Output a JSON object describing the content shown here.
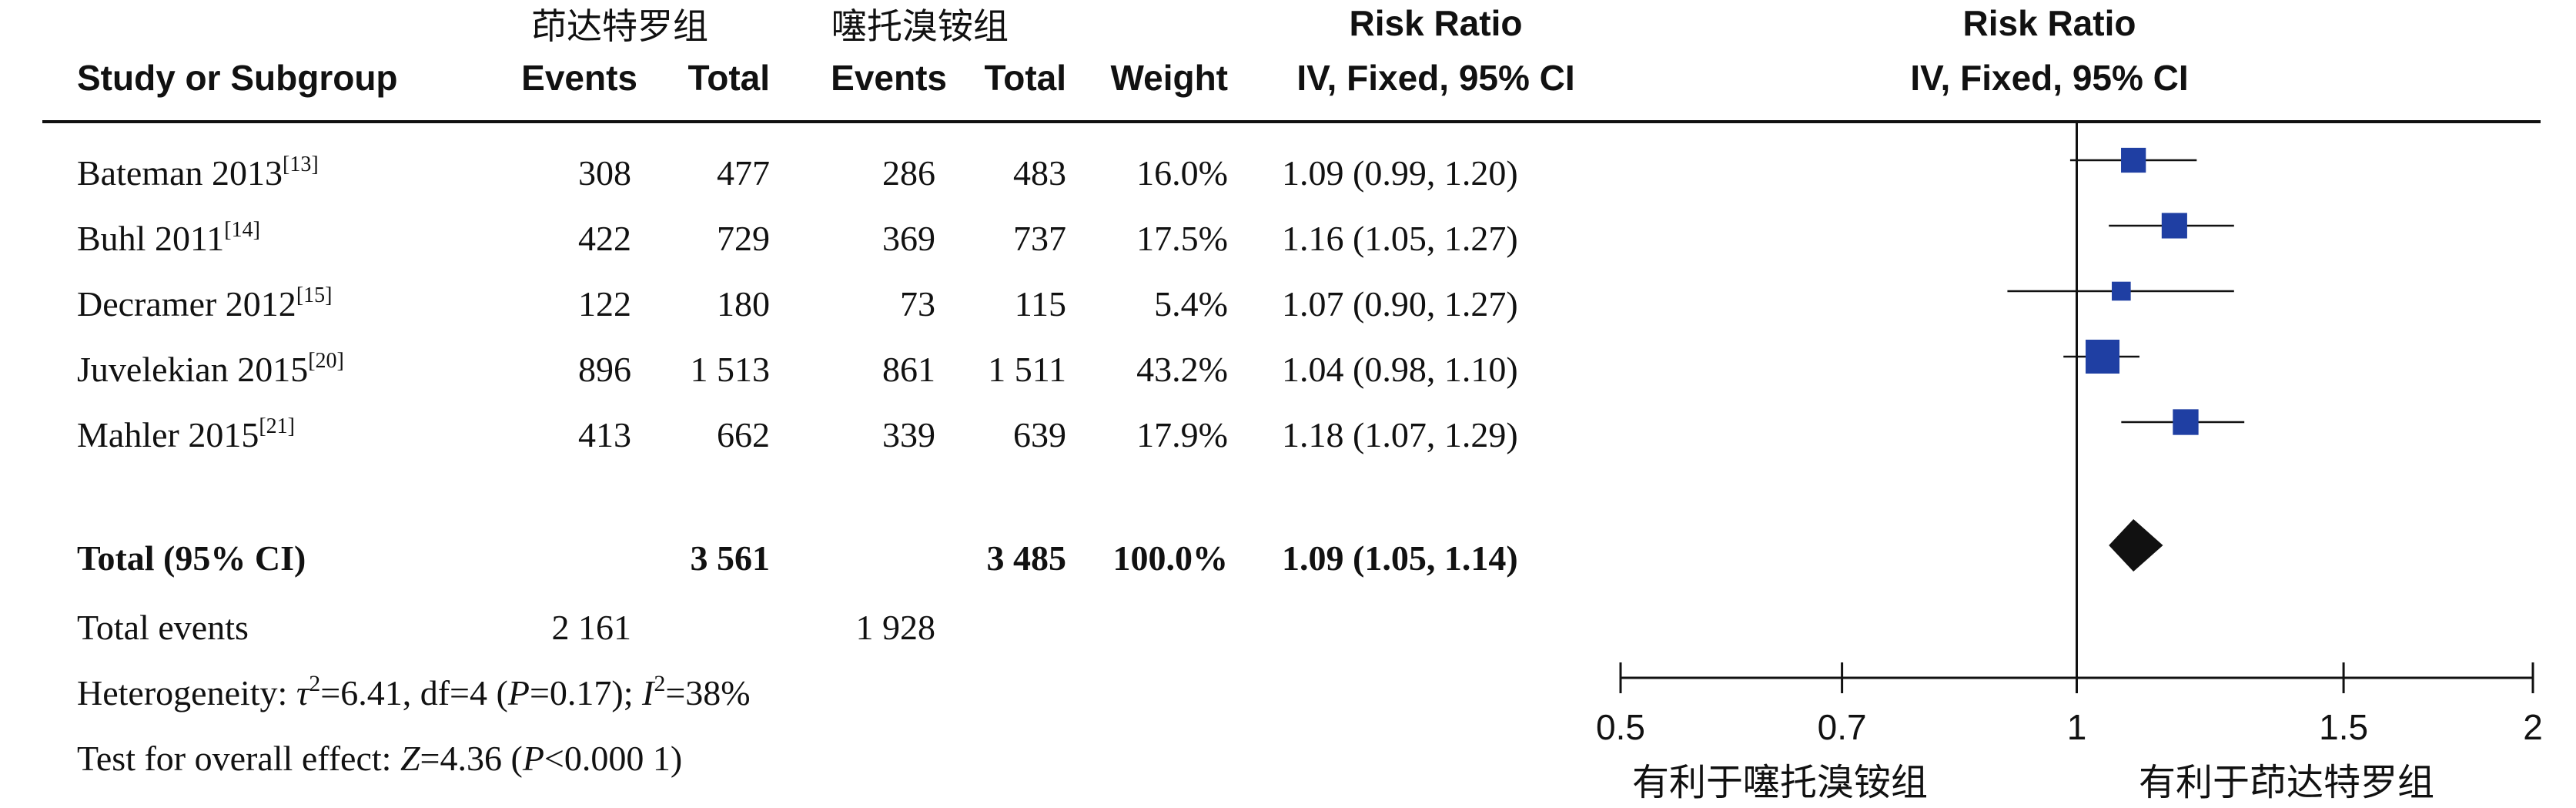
{
  "header": {
    "group_a": "茚达特罗组",
    "group_b": "噻托溴铵组",
    "study_col": "Study or Subgroup",
    "events": "Events",
    "total": "Total",
    "weight": "Weight",
    "rr_title": "Risk Ratio",
    "rr_method": "IV, Fixed, 95% CI"
  },
  "studies": [
    {
      "name": "Bateman  2013",
      "ref": "[13]",
      "events_a": "308",
      "total_a": "477",
      "events_b": "286",
      "total_b": "483",
      "weight": "16.0%",
      "ci_text": "1.09 (0.99, 1.20)"
    },
    {
      "name": "Buhl 2011",
      "ref": "[14]",
      "events_a": "422",
      "total_a": "729",
      "events_b": "369",
      "total_b": "737",
      "weight": "17.5%",
      "ci_text": "1.16 (1.05, 1.27)"
    },
    {
      "name": "Decramer 2012",
      "ref": "[15]",
      "events_a": "122",
      "total_a": "180",
      "events_b": "73",
      "total_b": "115",
      "weight": "5.4%",
      "ci_text": "1.07 (0.90, 1.27)"
    },
    {
      "name": "Juvelekian 2015",
      "ref": "[20]",
      "events_a": "896",
      "total_a": "1 513",
      "events_b": "861",
      "total_b": "1 511",
      "weight": "43.2%",
      "ci_text": "1.04 (0.98, 1.10)"
    },
    {
      "name": "Mahler 2015",
      "ref": "[21]",
      "events_a": "413",
      "total_a": "662",
      "events_b": "339",
      "total_b": "639",
      "weight": "17.9%",
      "ci_text": "1.18 (1.07, 1.29)"
    }
  ],
  "total_row": {
    "label": "Total (95% CI)",
    "total_a": "3 561",
    "total_b": "3 485",
    "weight": "100.0%",
    "ci_text": "1.09 (1.05, 1.14)"
  },
  "total_events": {
    "label": "Total events",
    "events_a": "2 161",
    "events_b": "1 928"
  },
  "heterogeneity": {
    "prefix": "Heterogeneity: ",
    "tau": "τ",
    "sup2": "2",
    "after_tau": "=6.41, df=4 (",
    "p": "P",
    "after_p": "=0.17); ",
    "i": "I",
    "sup2b": "2",
    "after_i": "=38%"
  },
  "overall_effect": {
    "prefix": "Test for overall effect: ",
    "z": "Z",
    "after_z": "=4.36 (",
    "p": "P",
    "after_p": "<0.000 1)"
  },
  "axis": {
    "ticks": [
      0.5,
      0.7,
      1,
      1.5,
      2
    ],
    "tick_labels": [
      "0.5",
      "0.7",
      "1",
      "1.5",
      "2"
    ],
    "favours_left": "有利于噻托溴铵组",
    "favours_right": "有利于茚达特罗组"
  },
  "chart_data": {
    "type": "forest",
    "scale": "log",
    "xlim": [
      0.5,
      2
    ],
    "reference_line": 1,
    "title": "Risk Ratio",
    "subtitle": "IV, Fixed, 95% CI",
    "points": [
      {
        "study": "Bateman  2013",
        "rr": 1.09,
        "lower": 0.99,
        "upper": 1.2,
        "weight": 16.0
      },
      {
        "study": "Buhl 2011",
        "rr": 1.16,
        "lower": 1.05,
        "upper": 1.27,
        "weight": 17.5
      },
      {
        "study": "Decramer 2012",
        "rr": 1.07,
        "lower": 0.9,
        "upper": 1.27,
        "weight": 5.4
      },
      {
        "study": "Juvelekian 2015",
        "rr": 1.04,
        "lower": 0.98,
        "upper": 1.1,
        "weight": 43.2
      },
      {
        "study": "Mahler 2015",
        "rr": 1.18,
        "lower": 1.07,
        "upper": 1.29,
        "weight": 17.9
      }
    ],
    "pooled": {
      "rr": 1.09,
      "lower": 1.05,
      "upper": 1.14
    },
    "colors": {
      "point": "#1f3fa3",
      "diamond": "#111111",
      "line": "#111111"
    }
  }
}
